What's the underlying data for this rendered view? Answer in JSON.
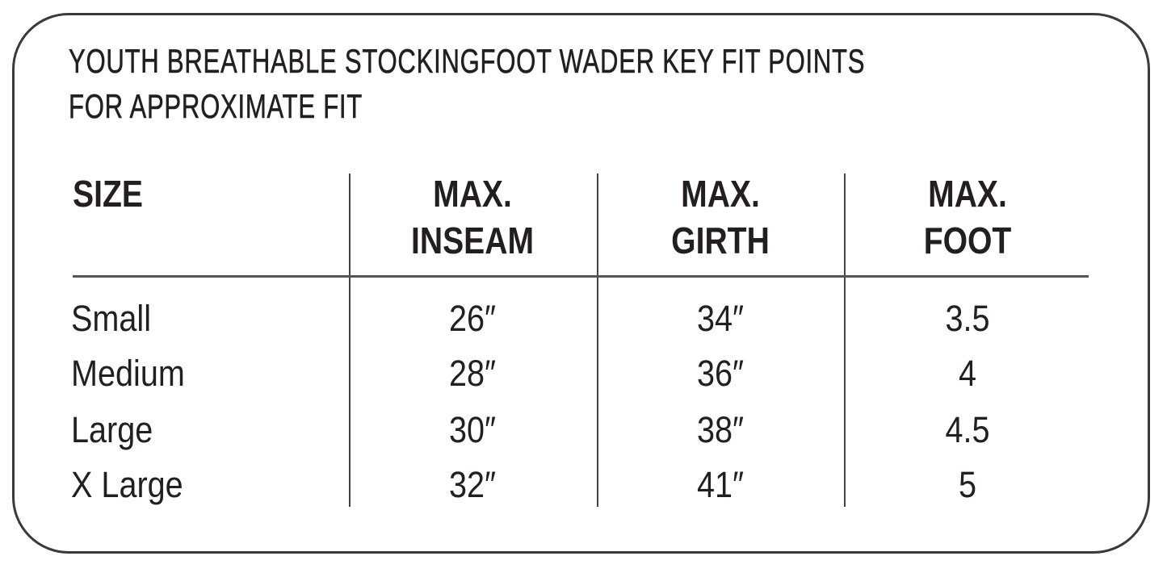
{
  "title": {
    "line1": "YOUTH BREATHABLE STOCKINGFOOT WADER KEY FIT POINTS",
    "line2": "FOR APPROXIMATE FIT"
  },
  "table": {
    "headers": [
      {
        "line1": "SIZE",
        "line2": ""
      },
      {
        "line1": "MAX.",
        "line2": "INSEAM"
      },
      {
        "line1": "MAX.",
        "line2": "GIRTH"
      },
      {
        "line1": "MAX.",
        "line2": "FOOT"
      }
    ],
    "rows": [
      [
        "Small",
        "26″",
        "34″",
        "3.5"
      ],
      [
        "Medium",
        "28″",
        "36″",
        "4"
      ],
      [
        "Large",
        "30″",
        "38″",
        "4.5"
      ],
      [
        "X Large",
        "32″",
        "41″",
        "5"
      ]
    ]
  }
}
